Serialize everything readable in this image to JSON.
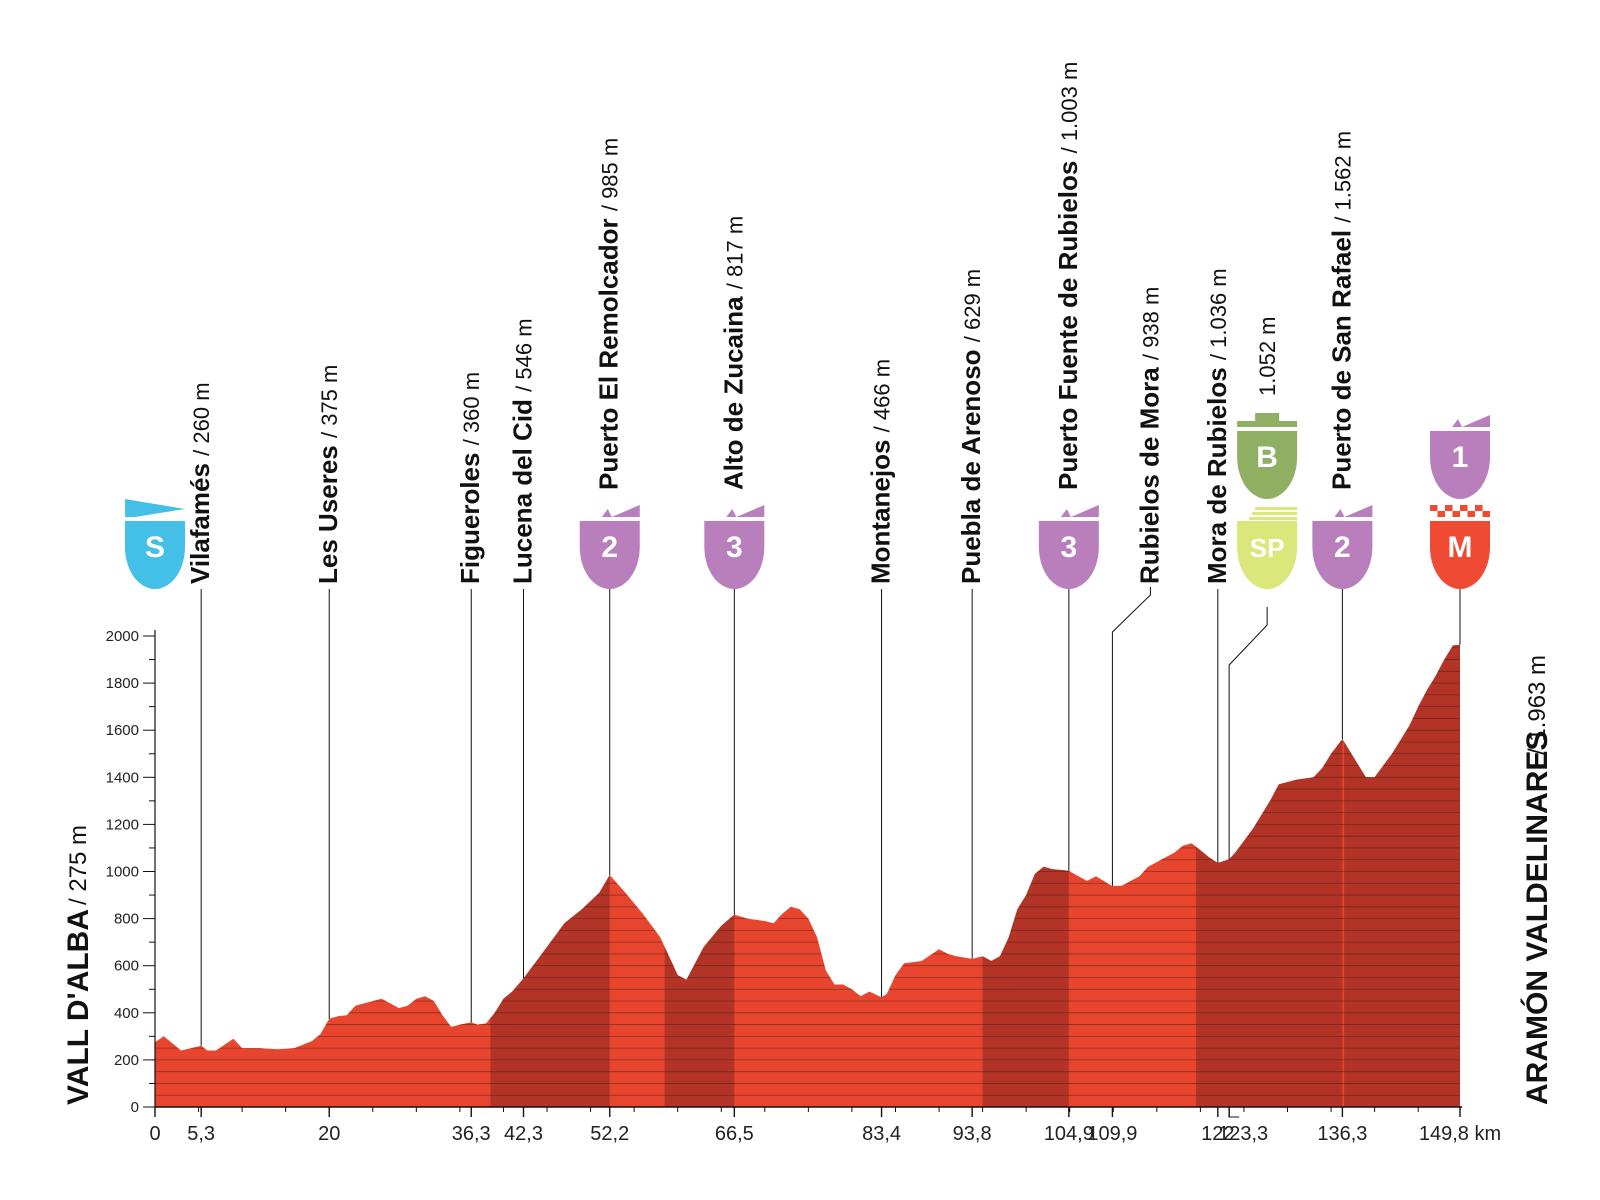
{
  "colors": {
    "profile": "#e8452f",
    "climb": "#b23426",
    "grid": "#4a1a12",
    "axis": "#111111",
    "start_badge": "#43bfe8",
    "climb_badge": "#b97fbd",
    "bonus_badge": "#8fb062",
    "sprint_badge": "#d9e77b",
    "finish_badge": "#ee4a34"
  },
  "start": {
    "name": "VALL D'ALBA",
    "alt": "/ 275 m"
  },
  "finish": {
    "name": "ARAMÓN VALDELINARES",
    "alt": "/ 1.963 m"
  },
  "chart_data": {
    "type": "area",
    "x_unit": "km",
    "xlim": [
      0,
      149.8
    ],
    "ylim": [
      0,
      2000
    ],
    "y_ticks": [
      "0",
      "200",
      "400",
      "600",
      "800",
      "1000",
      "1200",
      "1400",
      "1600",
      "1800",
      "2000"
    ],
    "x_ticks": [
      "0",
      "5,3",
      "20",
      "36,3",
      "42,3",
      "52,2",
      "66,5",
      "83,4",
      "93,8",
      "104,9",
      "109,9",
      "122",
      "123,3",
      "136,3",
      "149,8 km"
    ],
    "profile": [
      [
        0,
        275
      ],
      [
        1,
        300
      ],
      [
        2,
        270
      ],
      [
        3,
        240
      ],
      [
        5.3,
        260
      ],
      [
        6,
        240
      ],
      [
        7,
        240
      ],
      [
        9,
        290
      ],
      [
        10,
        250
      ],
      [
        12,
        250
      ],
      [
        14,
        245
      ],
      [
        16,
        250
      ],
      [
        18,
        280
      ],
      [
        19,
        310
      ],
      [
        20,
        375
      ],
      [
        21,
        385
      ],
      [
        22,
        390
      ],
      [
        23,
        430
      ],
      [
        24,
        440
      ],
      [
        26,
        460
      ],
      [
        27,
        440
      ],
      [
        28,
        420
      ],
      [
        29,
        430
      ],
      [
        30,
        460
      ],
      [
        31,
        470
      ],
      [
        32,
        450
      ],
      [
        33,
        390
      ],
      [
        34,
        340
      ],
      [
        35,
        350
      ],
      [
        36.3,
        360
      ],
      [
        37,
        350
      ],
      [
        38,
        355
      ],
      [
        39,
        400
      ],
      [
        40,
        460
      ],
      [
        41,
        490
      ],
      [
        42.3,
        546
      ],
      [
        44,
        630
      ],
      [
        46,
        730
      ],
      [
        47,
        780
      ],
      [
        49,
        840
      ],
      [
        51,
        910
      ],
      [
        52.2,
        985
      ],
      [
        54,
        910
      ],
      [
        56,
        820
      ],
      [
        58,
        720
      ],
      [
        60,
        560
      ],
      [
        61,
        540
      ],
      [
        63,
        680
      ],
      [
        65,
        770
      ],
      [
        66.5,
        817
      ],
      [
        68,
        800
      ],
      [
        70,
        790
      ],
      [
        71,
        780
      ],
      [
        72,
        820
      ],
      [
        73,
        850
      ],
      [
        74,
        840
      ],
      [
        75,
        800
      ],
      [
        76,
        720
      ],
      [
        77,
        580
      ],
      [
        78,
        520
      ],
      [
        79,
        520
      ],
      [
        80,
        500
      ],
      [
        81,
        470
      ],
      [
        82,
        490
      ],
      [
        83.4,
        466
      ],
      [
        84,
        480
      ],
      [
        85,
        560
      ],
      [
        86,
        610
      ],
      [
        88,
        620
      ],
      [
        90,
        670
      ],
      [
        91,
        650
      ],
      [
        92,
        640
      ],
      [
        93.8,
        629
      ],
      [
        95,
        640
      ],
      [
        96,
        620
      ],
      [
        97,
        640
      ],
      [
        98,
        720
      ],
      [
        99,
        840
      ],
      [
        100,
        900
      ],
      [
        101,
        990
      ],
      [
        102,
        1020
      ],
      [
        103,
        1010
      ],
      [
        104.9,
        1003
      ],
      [
        106,
        980
      ],
      [
        107,
        960
      ],
      [
        108,
        980
      ],
      [
        109.9,
        938
      ],
      [
        111,
        940
      ],
      [
        112,
        960
      ],
      [
        113,
        980
      ],
      [
        114,
        1020
      ],
      [
        116,
        1060
      ],
      [
        117,
        1080
      ],
      [
        118,
        1110
      ],
      [
        119,
        1120
      ],
      [
        120,
        1090
      ],
      [
        121,
        1060
      ],
      [
        122,
        1036
      ],
      [
        123.3,
        1052
      ],
      [
        124,
        1080
      ],
      [
        126,
        1180
      ],
      [
        128,
        1300
      ],
      [
        129,
        1370
      ],
      [
        131,
        1390
      ],
      [
        133,
        1400
      ],
      [
        134,
        1440
      ],
      [
        135,
        1500
      ],
      [
        136.3,
        1562
      ],
      [
        137,
        1520
      ],
      [
        138,
        1460
      ],
      [
        139,
        1400
      ],
      [
        140,
        1400
      ],
      [
        141,
        1450
      ],
      [
        142,
        1500
      ],
      [
        143,
        1560
      ],
      [
        144,
        1620
      ],
      [
        145,
        1700
      ],
      [
        146,
        1770
      ],
      [
        147,
        1830
      ],
      [
        148,
        1900
      ],
      [
        149,
        1960
      ],
      [
        149.8,
        1963
      ]
    ],
    "climb_segments": [
      [
        38.5,
        52.2
      ],
      [
        58.5,
        66.5
      ],
      [
        95,
        104.9
      ],
      [
        119.5,
        136.3
      ],
      [
        136.5,
        149.8
      ]
    ],
    "waypoints": [
      {
        "km": 0,
        "label": "0",
        "name": "",
        "alt": "",
        "badge": "S",
        "badge_type": "start"
      },
      {
        "km": 5.3,
        "label": "5,3",
        "name": "Vilafamés",
        "alt": "/ 260 m"
      },
      {
        "km": 20,
        "label": "20",
        "name": "Les Useres",
        "alt": "/ 375 m"
      },
      {
        "km": 36.3,
        "label": "36,3",
        "name": "Figueroles",
        "alt": "/ 360 m"
      },
      {
        "km": 42.3,
        "label": "42,3",
        "name": "Lucena del Cid",
        "alt": "/ 546 m"
      },
      {
        "km": 52.2,
        "label": "52,2",
        "name": "Puerto El Remolcador",
        "alt": "/ 985 m",
        "badge": "2",
        "badge_type": "climb"
      },
      {
        "km": 66.5,
        "label": "66,5",
        "name": "Alto de Zucaina",
        "alt": "/ 817 m",
        "badge": "3",
        "badge_type": "climb"
      },
      {
        "km": 83.4,
        "label": "83,4",
        "name": "Montanejos",
        "alt": "/ 466 m"
      },
      {
        "km": 93.8,
        "label": "93,8",
        "name": "Puebla de Arenoso",
        "alt": "/ 629 m"
      },
      {
        "km": 104.9,
        "label": "104,9",
        "name": "Puerto Fuente de Rubielos",
        "alt": "/ 1.003 m",
        "badge": "3",
        "badge_type": "climb"
      },
      {
        "km": 109.9,
        "label": "109,9",
        "name": "Rubielos de Mora",
        "alt": "/ 938 m"
      },
      {
        "km": 122,
        "label": "122",
        "name": "Mora de Rubielos",
        "alt": "/ 1.036 m"
      },
      {
        "km": 123.3,
        "label": "123,3",
        "name": "",
        "alt": "1.052 m",
        "badge": "SP",
        "badge_type": "sprint",
        "badge2": "B",
        "badge2_type": "bonus"
      },
      {
        "km": 136.3,
        "label": "136,3",
        "name": "Puerto de San Rafael",
        "alt": "/ 1.562 m",
        "badge": "2",
        "badge_type": "climb"
      },
      {
        "km": 149.8,
        "label": "149,8 km",
        "name": "",
        "alt": "",
        "badge": "M",
        "badge_type": "finish",
        "badge2": "1",
        "badge2_type": "climb"
      }
    ]
  }
}
